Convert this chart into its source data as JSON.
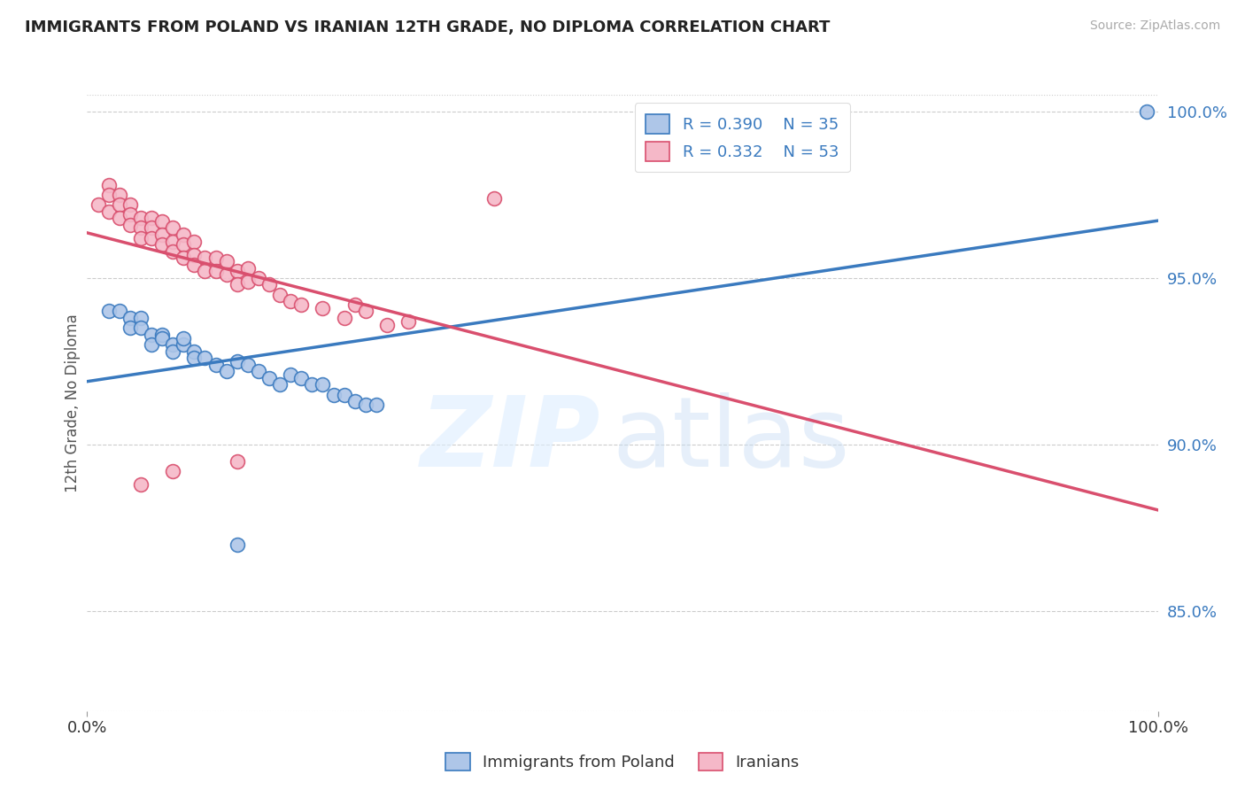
{
  "title": "IMMIGRANTS FROM POLAND VS IRANIAN 12TH GRADE, NO DIPLOMA CORRELATION CHART",
  "source": "Source: ZipAtlas.com",
  "ylabel": "12th Grade, No Diploma",
  "xlim": [
    0.0,
    1.0
  ],
  "ylim": [
    0.82,
    1.005
  ],
  "yticks": [
    0.85,
    0.9,
    0.95,
    1.0
  ],
  "ytick_labels": [
    "85.0%",
    "90.0%",
    "95.0%",
    "100.0%"
  ],
  "xtick_labels": [
    "0.0%",
    "100.0%"
  ],
  "legend_R_poland": "R = 0.390",
  "legend_N_poland": "N = 35",
  "legend_R_iran": "R = 0.332",
  "legend_N_iran": "N = 53",
  "poland_color": "#aec6e8",
  "iran_color": "#f5b8c8",
  "poland_line_color": "#3a7abf",
  "iran_line_color": "#d94f6e",
  "poland_scatter_x": [
    0.02,
    0.03,
    0.04,
    0.04,
    0.05,
    0.05,
    0.06,
    0.06,
    0.07,
    0.07,
    0.08,
    0.08,
    0.09,
    0.09,
    0.1,
    0.1,
    0.11,
    0.12,
    0.13,
    0.14,
    0.15,
    0.16,
    0.17,
    0.18,
    0.19,
    0.2,
    0.21,
    0.22,
    0.23,
    0.24,
    0.25,
    0.26,
    0.27,
    0.14,
    0.99
  ],
  "poland_scatter_y": [
    0.94,
    0.94,
    0.938,
    0.935,
    0.938,
    0.935,
    0.933,
    0.93,
    0.933,
    0.932,
    0.93,
    0.928,
    0.93,
    0.932,
    0.928,
    0.926,
    0.926,
    0.924,
    0.922,
    0.925,
    0.924,
    0.922,
    0.92,
    0.918,
    0.921,
    0.92,
    0.918,
    0.918,
    0.915,
    0.915,
    0.913,
    0.912,
    0.912,
    0.87,
    1.0
  ],
  "iran_scatter_x": [
    0.01,
    0.02,
    0.02,
    0.02,
    0.03,
    0.03,
    0.03,
    0.04,
    0.04,
    0.04,
    0.05,
    0.05,
    0.05,
    0.06,
    0.06,
    0.06,
    0.07,
    0.07,
    0.07,
    0.08,
    0.08,
    0.08,
    0.09,
    0.09,
    0.09,
    0.1,
    0.1,
    0.1,
    0.11,
    0.11,
    0.12,
    0.12,
    0.13,
    0.13,
    0.14,
    0.14,
    0.15,
    0.15,
    0.16,
    0.17,
    0.18,
    0.19,
    0.2,
    0.22,
    0.24,
    0.25,
    0.26,
    0.28,
    0.3,
    0.38,
    0.05,
    0.08,
    0.14
  ],
  "iran_scatter_y": [
    0.972,
    0.978,
    0.975,
    0.97,
    0.975,
    0.972,
    0.968,
    0.972,
    0.969,
    0.966,
    0.968,
    0.965,
    0.962,
    0.968,
    0.965,
    0.962,
    0.967,
    0.963,
    0.96,
    0.965,
    0.961,
    0.958,
    0.963,
    0.96,
    0.956,
    0.961,
    0.957,
    0.954,
    0.956,
    0.952,
    0.956,
    0.952,
    0.955,
    0.951,
    0.952,
    0.948,
    0.953,
    0.949,
    0.95,
    0.948,
    0.945,
    0.943,
    0.942,
    0.941,
    0.938,
    0.942,
    0.94,
    0.936,
    0.937,
    0.974,
    0.888,
    0.892,
    0.895
  ]
}
